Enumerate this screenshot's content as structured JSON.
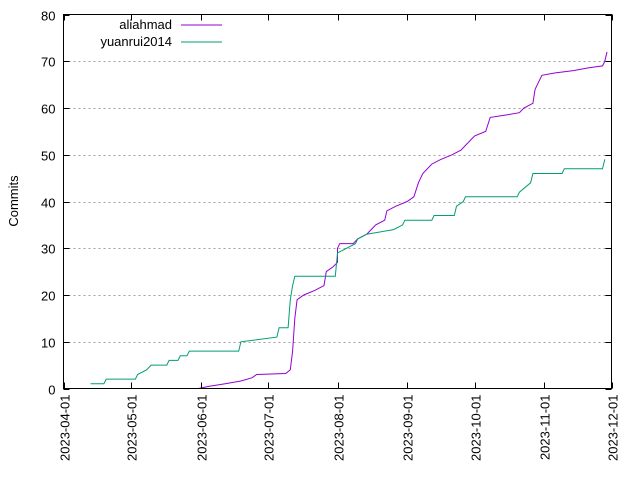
{
  "chart_data": {
    "type": "line",
    "title": "",
    "xlabel": "",
    "ylabel": "Commits",
    "x_type": "date",
    "xlim": [
      "2023-04-01",
      "2023-12-01"
    ],
    "ylim": [
      0,
      80
    ],
    "yticks": [
      0,
      10,
      20,
      30,
      40,
      50,
      60,
      70,
      80
    ],
    "xticks": [
      "2023-04-01",
      "2023-05-01",
      "2023-06-01",
      "2023-07-01",
      "2023-08-01",
      "2023-09-01",
      "2023-10-01",
      "2023-11-01",
      "2023-12-01"
    ],
    "grid": "horizontal-dotted",
    "legend_position": "top-left",
    "series": [
      {
        "name": "aliahmad",
        "color": "#9400d3",
        "points": [
          [
            "2023-05-31",
            0
          ],
          [
            "2023-06-05",
            0.5
          ],
          [
            "2023-06-12",
            1
          ],
          [
            "2023-06-19",
            1.6
          ],
          [
            "2023-06-24",
            2.3
          ],
          [
            "2023-06-26",
            3
          ],
          [
            "2023-07-09",
            3.2
          ],
          [
            "2023-07-11",
            4
          ],
          [
            "2023-07-12",
            8
          ],
          [
            "2023-07-13",
            15
          ],
          [
            "2023-07-14",
            19
          ],
          [
            "2023-07-17",
            20
          ],
          [
            "2023-07-22",
            21
          ],
          [
            "2023-07-26",
            22
          ],
          [
            "2023-07-27",
            25
          ],
          [
            "2023-07-30",
            26
          ],
          [
            "2023-08-01",
            27
          ],
          [
            "2023-08-01",
            30
          ],
          [
            "2023-08-02",
            31
          ],
          [
            "2023-08-08",
            31
          ],
          [
            "2023-08-10",
            32
          ],
          [
            "2023-08-14",
            33
          ],
          [
            "2023-08-16",
            34
          ],
          [
            "2023-08-18",
            35
          ],
          [
            "2023-08-22",
            36
          ],
          [
            "2023-08-23",
            38
          ],
          [
            "2023-08-27",
            39
          ],
          [
            "2023-09-01",
            40
          ],
          [
            "2023-09-04",
            41
          ],
          [
            "2023-09-06",
            44
          ],
          [
            "2023-09-08",
            46
          ],
          [
            "2023-09-12",
            48
          ],
          [
            "2023-09-16",
            49
          ],
          [
            "2023-09-21",
            50
          ],
          [
            "2023-09-25",
            51
          ],
          [
            "2023-09-27",
            52
          ],
          [
            "2023-10-01",
            54
          ],
          [
            "2023-10-06",
            55
          ],
          [
            "2023-10-08",
            58
          ],
          [
            "2023-10-15",
            58.5
          ],
          [
            "2023-10-21",
            59
          ],
          [
            "2023-10-23",
            60
          ],
          [
            "2023-10-27",
            61
          ],
          [
            "2023-10-28",
            64
          ],
          [
            "2023-10-31",
            67
          ],
          [
            "2023-11-06",
            67.5
          ],
          [
            "2023-11-14",
            68
          ],
          [
            "2023-11-21",
            68.6
          ],
          [
            "2023-11-27",
            69
          ],
          [
            "2023-11-28",
            70
          ],
          [
            "2023-11-29",
            72
          ]
        ]
      },
      {
        "name": "yuanrui2014",
        "color": "#009e73",
        "points": [
          [
            "2023-04-13",
            1
          ],
          [
            "2023-04-19",
            1
          ],
          [
            "2023-04-20",
            2
          ],
          [
            "2023-05-03",
            2
          ],
          [
            "2023-05-04",
            3
          ],
          [
            "2023-05-08",
            4
          ],
          [
            "2023-05-10",
            5
          ],
          [
            "2023-05-17",
            5
          ],
          [
            "2023-05-18",
            6
          ],
          [
            "2023-05-22",
            6
          ],
          [
            "2023-05-23",
            7
          ],
          [
            "2023-05-26",
            7
          ],
          [
            "2023-05-27",
            8
          ],
          [
            "2023-06-18",
            8
          ],
          [
            "2023-06-19",
            10
          ],
          [
            "2023-07-05",
            11
          ],
          [
            "2023-07-06",
            13
          ],
          [
            "2023-07-10",
            13
          ],
          [
            "2023-07-11",
            19
          ],
          [
            "2023-07-12",
            22
          ],
          [
            "2023-07-13",
            24
          ],
          [
            "2023-07-31",
            24
          ],
          [
            "2023-08-01",
            29
          ],
          [
            "2023-08-05",
            30
          ],
          [
            "2023-08-09",
            31
          ],
          [
            "2023-08-10",
            32
          ],
          [
            "2023-08-14",
            33
          ],
          [
            "2023-08-26",
            34
          ],
          [
            "2023-08-30",
            35
          ],
          [
            "2023-08-31",
            36
          ],
          [
            "2023-09-06",
            36
          ],
          [
            "2023-09-12",
            36
          ],
          [
            "2023-09-13",
            37
          ],
          [
            "2023-09-22",
            37
          ],
          [
            "2023-09-23",
            39
          ],
          [
            "2023-09-26",
            40
          ],
          [
            "2023-09-27",
            41
          ],
          [
            "2023-10-20",
            41
          ],
          [
            "2023-10-21",
            42
          ],
          [
            "2023-10-26",
            44
          ],
          [
            "2023-10-27",
            46
          ],
          [
            "2023-11-09",
            46
          ],
          [
            "2023-11-10",
            47
          ],
          [
            "2023-11-25",
            47
          ],
          [
            "2023-11-27",
            47
          ],
          [
            "2023-11-28",
            49
          ]
        ]
      }
    ]
  }
}
